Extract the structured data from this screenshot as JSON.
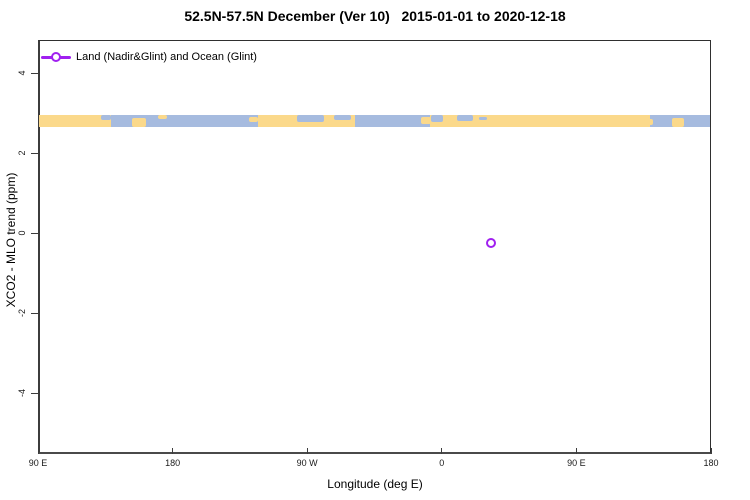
{
  "title": "52.5N-57.5N December (Ver 10)   2015-01-01 to 2020-12-18",
  "legend": {
    "label": "Land (Nadir&Glint) and Ocean (Glint)",
    "marker": "open-circle-on-line",
    "color": "#A020F0"
  },
  "axes": {
    "x_title": "Longitude (deg E)",
    "y_title": "XCO2 - MLO trend (ppm)"
  },
  "colors": {
    "accent_purple": "#A020F0",
    "land": "#FBD98B",
    "ocean": "#A6BBDF",
    "axis": "#3c3c3c",
    "background": "#FFFFFF"
  },
  "chart_data": {
    "type": "scatter",
    "title": "52.5N-57.5N December (Ver 10)   2015-01-01 to 2020-12-18",
    "xlabel": "Longitude (deg E)",
    "ylabel": "XCO2 - MLO trend (ppm)",
    "xlim": [
      90,
      540
    ],
    "ylim": [
      -5.5,
      4.85
    ],
    "grid": false,
    "legend_position": "top-left",
    "x_ticks": [
      {
        "label": "90 E",
        "value": 90
      },
      {
        "label": "180",
        "value": 180
      },
      {
        "label": "90 W",
        "value": 270
      },
      {
        "label": "0",
        "value": 360
      },
      {
        "label": "90 E",
        "value": 450
      },
      {
        "label": "180",
        "value": 540
      }
    ],
    "y_ticks": [
      {
        "label": "4",
        "value": 4
      },
      {
        "label": "2",
        "value": 2
      },
      {
        "label": "0",
        "value": 0
      },
      {
        "label": "-2",
        "value": -2
      },
      {
        "label": "-4",
        "value": -4
      }
    ],
    "series": [
      {
        "name": "Land (Nadir&Glint) and Ocean (Glint)",
        "marker": "open-circle",
        "color": "#A020F0",
        "points": [
          {
            "x": 393,
            "y": -0.26,
            "lon_deg_e": 33
          }
        ]
      }
    ],
    "map_band": {
      "description": "world-map latitude strip 52.5N-57.5N drawn across plot",
      "y_center": 2.8,
      "y_half_height": 0.14,
      "land_color": "#FBD98B",
      "ocean_color": "#A6BBDF",
      "segments": [
        {
          "from": 90,
          "to": 139,
          "type": "land",
          "name": "siberia-east"
        },
        {
          "from": 139,
          "to": 237,
          "type": "ocean",
          "name": "okhotsk-bering-pacific"
        },
        {
          "from": 237,
          "to": 302,
          "type": "land",
          "name": "canada"
        },
        {
          "from": 302,
          "to": 352,
          "type": "ocean",
          "name": "north-atlantic"
        },
        {
          "from": 352,
          "to": 499,
          "type": "land",
          "name": "europe-russia"
        },
        {
          "from": 499,
          "to": 540,
          "type": "ocean",
          "name": "okhotsk-west"
        }
      ],
      "patches": [
        {
          "from": 132,
          "to": 139,
          "type": "ocean",
          "top": 0,
          "bottom": 0.4,
          "name": "siberia-coast"
        },
        {
          "from": 153,
          "to": 162,
          "type": "land",
          "top": 0.25,
          "bottom": 1,
          "name": "kamchatka"
        },
        {
          "from": 170,
          "to": 176,
          "type": "land",
          "top": 0,
          "bottom": 0.3,
          "name": "aleutian-specks"
        },
        {
          "from": 231,
          "to": 237,
          "type": "land",
          "top": 0.15,
          "bottom": 0.6,
          "name": "bc-coast"
        },
        {
          "from": 263,
          "to": 281,
          "type": "ocean",
          "top": 0,
          "bottom": 0.55,
          "name": "hudson-bay"
        },
        {
          "from": 288,
          "to": 299,
          "type": "ocean",
          "top": 0,
          "bottom": 0.4,
          "name": "labrador-sea"
        },
        {
          "from": 346,
          "to": 353,
          "type": "land",
          "top": 0.15,
          "bottom": 0.75,
          "name": "uk-ireland"
        },
        {
          "from": 353,
          "to": 361,
          "type": "ocean",
          "top": 0,
          "bottom": 0.6,
          "name": "north-sea"
        },
        {
          "from": 370,
          "to": 381,
          "type": "ocean",
          "top": 0,
          "bottom": 0.5,
          "name": "baltic-sea"
        },
        {
          "from": 385,
          "to": 390,
          "type": "ocean",
          "top": 0.1,
          "bottom": 0.45,
          "name": "lake-patch"
        },
        {
          "from": 495,
          "to": 501,
          "type": "land",
          "top": 0.3,
          "bottom": 0.85,
          "name": "okhotsk-coast"
        },
        {
          "from": 514,
          "to": 522,
          "type": "land",
          "top": 0.25,
          "bottom": 1,
          "name": "kamchatka-east"
        }
      ]
    }
  }
}
